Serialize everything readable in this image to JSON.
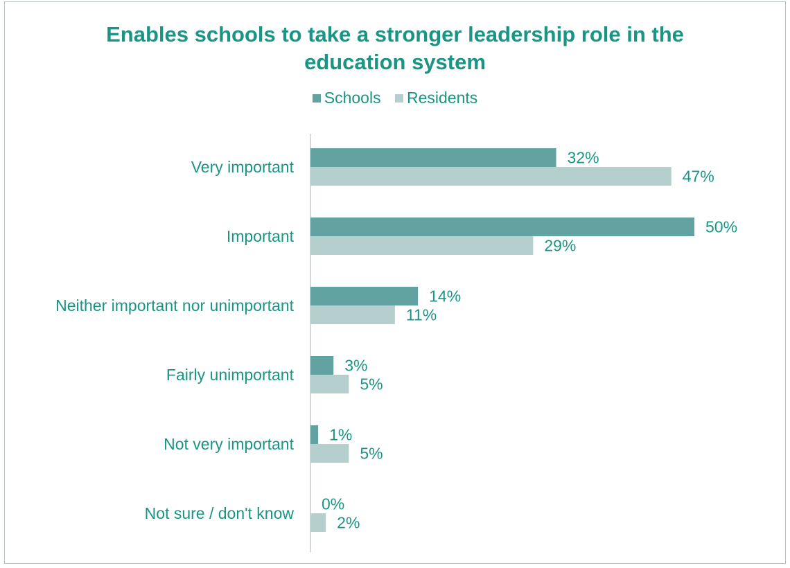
{
  "chart_data": {
    "type": "bar",
    "orientation": "horizontal",
    "title_lines": [
      "Enables schools to take a stronger leadership role in the",
      "education system"
    ],
    "categories": [
      "Very important",
      "Important ",
      "Neither important nor unimportant",
      "Fairly unimportant",
      "Not very important",
      "Not sure / don't know"
    ],
    "series": [
      {
        "name": "Schools",
        "color": "#62a2a1",
        "values": [
          32,
          50,
          14,
          3,
          1,
          0
        ],
        "labels": [
          "32%",
          "50%",
          "14%",
          "3%",
          "1%",
          "0%"
        ]
      },
      {
        "name": "Residents",
        "color": "#b5cfcf",
        "values": [
          47,
          29,
          11,
          5,
          5,
          2
        ],
        "labels": [
          "47%",
          "29%",
          "11%",
          "5%",
          "5%",
          "2%"
        ]
      }
    ],
    "legend_position": "top",
    "grid": false,
    "xlim": [
      0,
      50
    ],
    "text_color": "#1a9584"
  }
}
